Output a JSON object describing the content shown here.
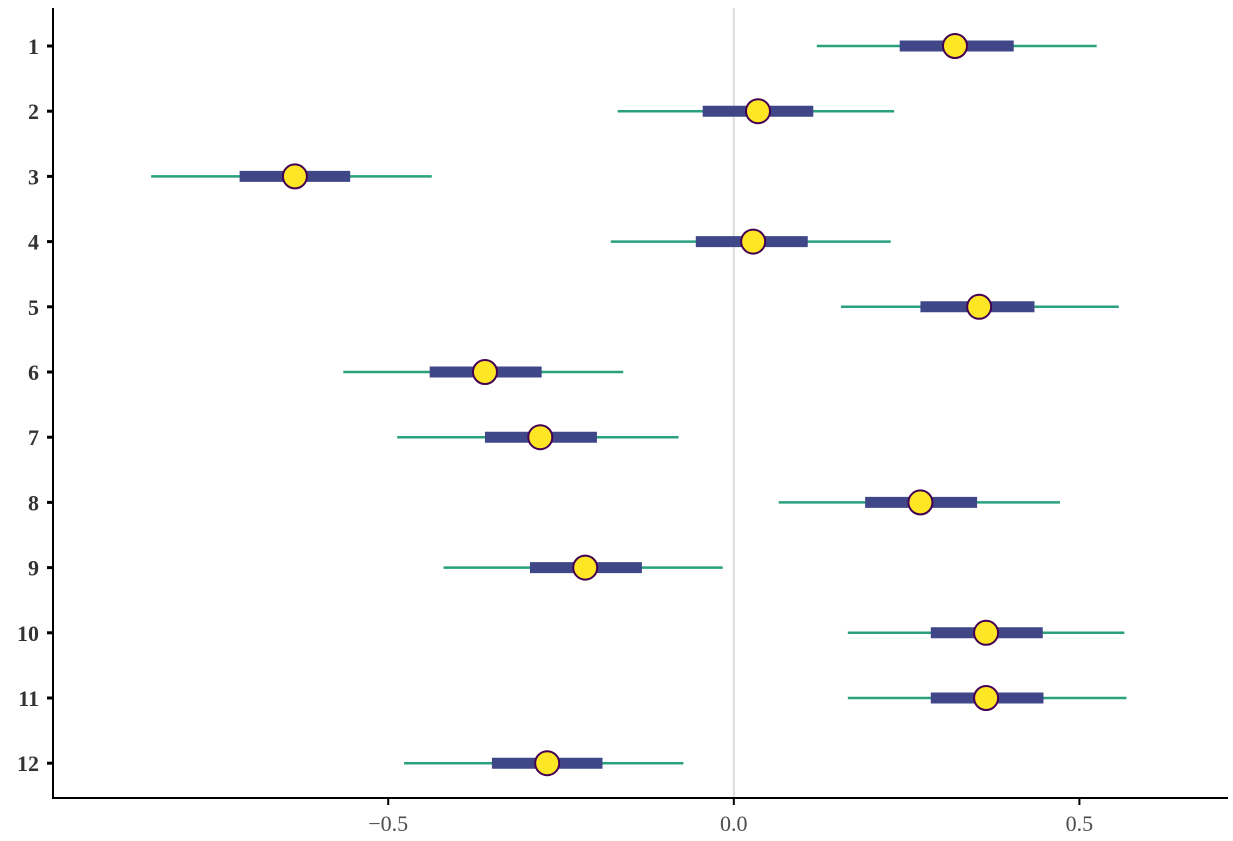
{
  "chart_data": {
    "type": "interval",
    "categories": [
      "1",
      "2",
      "3",
      "4",
      "5",
      "6",
      "7",
      "8",
      "9",
      "10",
      "11",
      "12"
    ],
    "points": [
      0.32,
      0.035,
      -0.635,
      0.028,
      0.355,
      -0.36,
      -0.28,
      0.27,
      -0.215,
      0.365,
      0.365,
      -0.27
    ],
    "inner_intervals": [
      [
        0.24,
        0.405
      ],
      [
        -0.045,
        0.115
      ],
      [
        -0.715,
        -0.555
      ],
      [
        -0.055,
        0.107
      ],
      [
        0.27,
        0.435
      ],
      [
        -0.44,
        -0.278
      ],
      [
        -0.36,
        -0.198
      ],
      [
        0.19,
        0.352
      ],
      [
        -0.295,
        -0.133
      ],
      [
        0.285,
        0.447
      ],
      [
        0.285,
        0.448
      ],
      [
        -0.35,
        -0.19
      ]
    ],
    "outer_intervals": [
      [
        0.12,
        0.525
      ],
      [
        -0.168,
        0.232
      ],
      [
        -0.843,
        -0.437
      ],
      [
        -0.178,
        0.227
      ],
      [
        0.155,
        0.557
      ],
      [
        -0.565,
        -0.16
      ],
      [
        -0.487,
        -0.08
      ],
      [
        0.065,
        0.472
      ],
      [
        -0.42,
        -0.016
      ],
      [
        0.165,
        0.565
      ],
      [
        0.165,
        0.568
      ],
      [
        -0.477,
        -0.073
      ]
    ],
    "x_ticks": [
      "−0.5",
      "0.0",
      "0.5"
    ],
    "x_tick_values": [
      -0.5,
      0.0,
      0.5
    ],
    "xlim": [
      -0.985,
      0.715
    ],
    "reference_line": 0.0,
    "title": "",
    "xlabel": "",
    "ylabel": "",
    "grid": false
  },
  "colors": {
    "outer_interval": "#2aa07f",
    "inner_interval": "#3f4788",
    "point_fill": "#fde725",
    "point_stroke": "#440154",
    "reference_line": "#dcdcdc",
    "axis": "#000000",
    "tick_label": "#333333"
  }
}
